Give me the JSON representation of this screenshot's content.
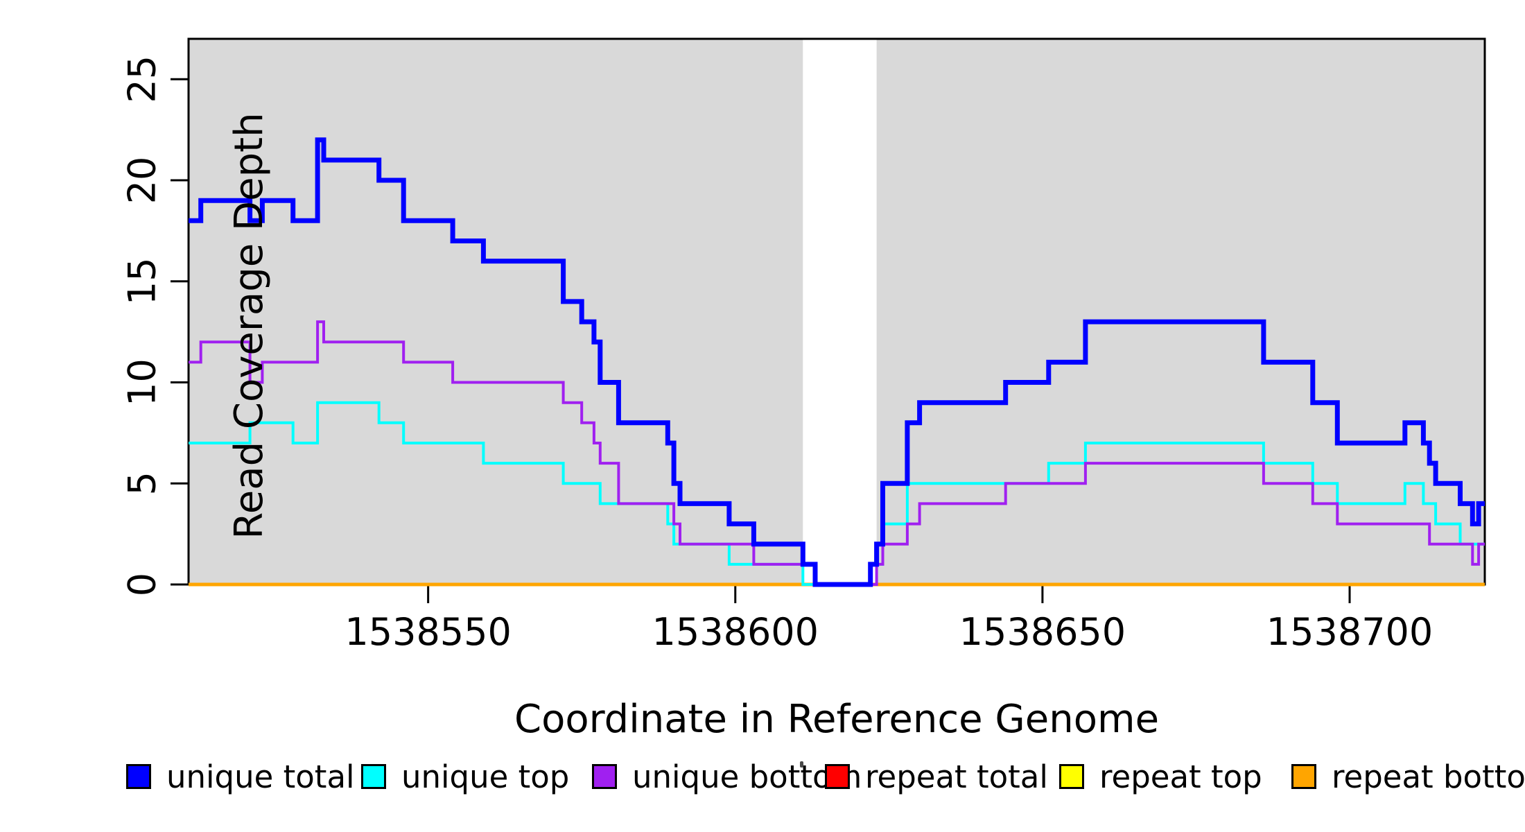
{
  "figure": {
    "background": "#ffffff",
    "plot_background_shaded": "#D9D9D9",
    "axis_color": "#000000"
  },
  "chart_data": {
    "type": "line",
    "subtype": "step",
    "title": "",
    "xlabel": "Coordinate in Reference Genome",
    "ylabel": "Read Coverage Depth",
    "xlim": [
      1538511,
      1538722
    ],
    "ylim": [
      0,
      27
    ],
    "x_ticks": [
      1538550,
      1538600,
      1538650,
      1538700
    ],
    "y_ticks": [
      0,
      5,
      10,
      15,
      20,
      25
    ],
    "grid": false,
    "legend_position": "bottom",
    "background_shading": {
      "color": "#D9D9D9",
      "regions": [
        [
          1538511,
          1538611
        ],
        [
          1538623,
          1538722
        ]
      ],
      "white_gap": [
        1538611,
        1538623
      ]
    },
    "series": [
      {
        "name": "unique total",
        "color": "#0000FF",
        "line_width": 7,
        "end": 1538722,
        "steps": [
          [
            1538511,
            18
          ],
          [
            1538513,
            19
          ],
          [
            1538521,
            18
          ],
          [
            1538523,
            19
          ],
          [
            1538528,
            18
          ],
          [
            1538532,
            22
          ],
          [
            1538533,
            21
          ],
          [
            1538542,
            20
          ],
          [
            1538546,
            18
          ],
          [
            1538554,
            17
          ],
          [
            1538559,
            16
          ],
          [
            1538572,
            14
          ],
          [
            1538575,
            13
          ],
          [
            1538577,
            12
          ],
          [
            1538578,
            10
          ],
          [
            1538581,
            8
          ],
          [
            1538589,
            7
          ],
          [
            1538590,
            5
          ],
          [
            1538591,
            4
          ],
          [
            1538599,
            3
          ],
          [
            1538603,
            2
          ],
          [
            1538611,
            1
          ],
          [
            1538613,
            0
          ],
          [
            1538622,
            1
          ],
          [
            1538623,
            2
          ],
          [
            1538624,
            5
          ],
          [
            1538628,
            8
          ],
          [
            1538630,
            9
          ],
          [
            1538644,
            10
          ],
          [
            1538651,
            11
          ],
          [
            1538657,
            13
          ],
          [
            1538686,
            11
          ],
          [
            1538694,
            9
          ],
          [
            1538698,
            7
          ],
          [
            1538709,
            8
          ],
          [
            1538712,
            7
          ],
          [
            1538713,
            6
          ],
          [
            1538714,
            5
          ],
          [
            1538718,
            4
          ],
          [
            1538720,
            3
          ],
          [
            1538721,
            4
          ]
        ]
      },
      {
        "name": "unique top",
        "color": "#00FFFF",
        "line_width": 4,
        "end": 1538722,
        "steps": [
          [
            1538511,
            7
          ],
          [
            1538521,
            8
          ],
          [
            1538528,
            7
          ],
          [
            1538532,
            9
          ],
          [
            1538542,
            8
          ],
          [
            1538546,
            7
          ],
          [
            1538559,
            6
          ],
          [
            1538572,
            5
          ],
          [
            1538578,
            4
          ],
          [
            1538589,
            3
          ],
          [
            1538590,
            2
          ],
          [
            1538599,
            1
          ],
          [
            1538611,
            0
          ],
          [
            1538622,
            1
          ],
          [
            1538624,
            3
          ],
          [
            1538628,
            5
          ],
          [
            1538651,
            6
          ],
          [
            1538657,
            7
          ],
          [
            1538686,
            6
          ],
          [
            1538694,
            5
          ],
          [
            1538698,
            4
          ],
          [
            1538709,
            5
          ],
          [
            1538712,
            4
          ],
          [
            1538714,
            3
          ],
          [
            1538718,
            2
          ]
        ]
      },
      {
        "name": "unique bottom",
        "color": "#A020F0",
        "line_width": 4,
        "end": 1538722,
        "steps": [
          [
            1538511,
            11
          ],
          [
            1538513,
            12
          ],
          [
            1538521,
            10
          ],
          [
            1538523,
            11
          ],
          [
            1538532,
            13
          ],
          [
            1538533,
            12
          ],
          [
            1538546,
            11
          ],
          [
            1538554,
            10
          ],
          [
            1538572,
            9
          ],
          [
            1538575,
            8
          ],
          [
            1538577,
            7
          ],
          [
            1538578,
            6
          ],
          [
            1538581,
            4
          ],
          [
            1538590,
            3
          ],
          [
            1538591,
            2
          ],
          [
            1538603,
            1
          ],
          [
            1538613,
            0
          ],
          [
            1538623,
            1
          ],
          [
            1538624,
            2
          ],
          [
            1538628,
            3
          ],
          [
            1538630,
            4
          ],
          [
            1538644,
            5
          ],
          [
            1538657,
            6
          ],
          [
            1538686,
            5
          ],
          [
            1538694,
            4
          ],
          [
            1538698,
            3
          ],
          [
            1538713,
            2
          ],
          [
            1538720,
            1
          ],
          [
            1538721,
            2
          ]
        ]
      },
      {
        "name": "repeat total",
        "color": "#FF0000",
        "line_width": 5,
        "end": 1538722,
        "steps": [
          [
            1538511,
            0
          ]
        ]
      },
      {
        "name": "repeat top",
        "color": "#FFFF00",
        "line_width": 5,
        "end": 1538722,
        "steps": [
          [
            1538511,
            0
          ]
        ]
      },
      {
        "name": "repeat bottom",
        "color": "#FFA500",
        "line_width": 5,
        "end": 1538722,
        "steps": [
          [
            1538511,
            0
          ]
        ]
      }
    ],
    "draw_order": [
      "repeat total",
      "repeat top",
      "repeat bottom",
      "unique top",
      "unique bottom",
      "unique total"
    ],
    "legend": [
      {
        "label": "unique total",
        "color": "#0000FF"
      },
      {
        "label": "unique top",
        "color": "#00FFFF"
      },
      {
        "label": "unique bottom",
        "color": "#A020F0"
      },
      {
        "label": "repeat total",
        "color": "#FF0000"
      },
      {
        "label": "repeat top",
        "color": "#FFFF00"
      },
      {
        "label": "repeat bottom",
        "color": "#FFA500"
      }
    ]
  }
}
